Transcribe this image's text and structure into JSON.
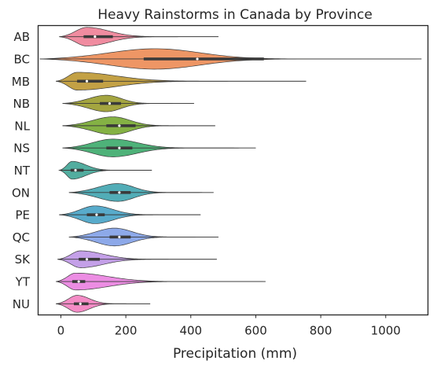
{
  "chart_data": {
    "type": "violin",
    "orientation": "horizontal",
    "title": "Heavy Rainstorms in Canada by Province",
    "xlabel": "Precipitation (mm)",
    "ylabel": "",
    "xlim": [
      -70,
      1130
    ],
    "xticks": [
      0,
      200,
      400,
      600,
      800,
      1000
    ],
    "grid": false,
    "legend": "none",
    "categories": [
      "AB",
      "BC",
      "MB",
      "NB",
      "NL",
      "NS",
      "NT",
      "ON",
      "PE",
      "QC",
      "SK",
      "YT",
      "NU"
    ],
    "colors": [
      "#f08ca0",
      "#ee9665",
      "#c3a145",
      "#a4a540",
      "#84b144",
      "#4eb279",
      "#52ad9f",
      "#52adb7",
      "#58abcb",
      "#8da9e9",
      "#c4a0e8",
      "#ec8de3",
      "#f48cc6"
    ],
    "violins": [
      {
        "name": "AB",
        "min": -5,
        "q1": 70,
        "median": 105,
        "q3": 160,
        "max": 485,
        "peak": 80,
        "halfwidth": 0.42
      },
      {
        "name": "BC",
        "min": -65,
        "q1": 255,
        "median": 420,
        "q3": 625,
        "max": 1110,
        "peak": 290,
        "halfwidth": 0.46
      },
      {
        "name": "MB",
        "min": -15,
        "q1": 50,
        "median": 80,
        "q3": 130,
        "max": 755,
        "peak": 50,
        "halfwidth": 0.4
      },
      {
        "name": "NB",
        "min": 5,
        "q1": 120,
        "median": 150,
        "q3": 185,
        "max": 410,
        "peak": 140,
        "halfwidth": 0.37
      },
      {
        "name": "NL",
        "min": 5,
        "q1": 140,
        "median": 180,
        "q3": 230,
        "max": 475,
        "peak": 160,
        "halfwidth": 0.4
      },
      {
        "name": "NS",
        "min": 5,
        "q1": 140,
        "median": 180,
        "q3": 220,
        "max": 600,
        "peak": 160,
        "halfwidth": 0.4
      },
      {
        "name": "NT",
        "min": -5,
        "q1": 30,
        "median": 45,
        "q3": 70,
        "max": 280,
        "peak": 35,
        "halfwidth": 0.4
      },
      {
        "name": "ON",
        "min": 25,
        "q1": 150,
        "median": 180,
        "q3": 215,
        "max": 470,
        "peak": 175,
        "halfwidth": 0.4
      },
      {
        "name": "PE",
        "min": -5,
        "q1": 80,
        "median": 110,
        "q3": 135,
        "max": 430,
        "peak": 105,
        "halfwidth": 0.4
      },
      {
        "name": "QC",
        "min": 25,
        "q1": 150,
        "median": 180,
        "q3": 215,
        "max": 485,
        "peak": 165,
        "halfwidth": 0.4
      },
      {
        "name": "SK",
        "min": -10,
        "q1": 55,
        "median": 80,
        "q3": 120,
        "max": 480,
        "peak": 60,
        "halfwidth": 0.38
      },
      {
        "name": "YT",
        "min": -15,
        "q1": 35,
        "median": 55,
        "q3": 75,
        "max": 630,
        "peak": 45,
        "halfwidth": 0.38
      },
      {
        "name": "NU",
        "min": -15,
        "q1": 40,
        "median": 60,
        "q3": 85,
        "max": 275,
        "peak": 50,
        "halfwidth": 0.38
      }
    ]
  }
}
